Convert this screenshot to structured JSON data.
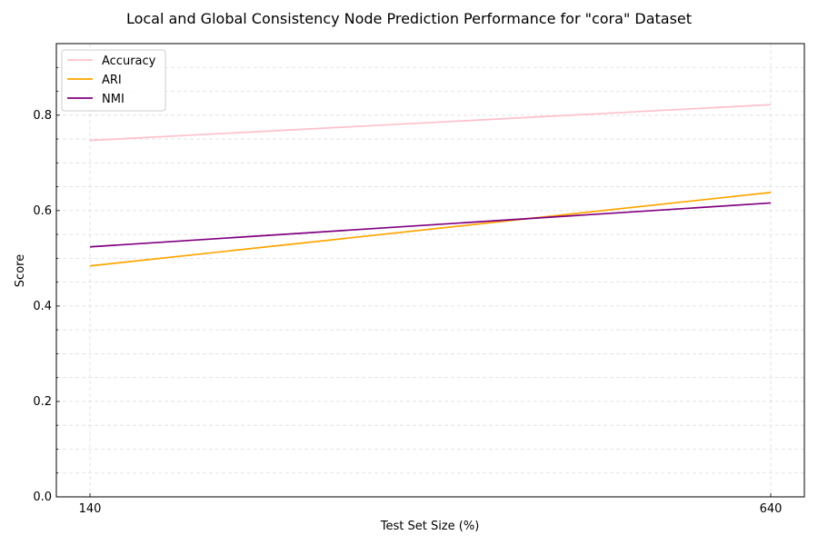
{
  "chart_data": {
    "type": "line",
    "title": "Local and Global Consistency Node Prediction Performance for \"cora\" Dataset",
    "xlabel": "Test Set Size (%)",
    "ylabel": "Score",
    "x": [
      140,
      640
    ],
    "xticks": [
      "140",
      "640"
    ],
    "yticks": [
      "0.0",
      "0.2",
      "0.4",
      "0.6",
      "0.8"
    ],
    "ylim": [
      0,
      0.95
    ],
    "grid": true,
    "legend_position": "top-left",
    "series": [
      {
        "name": "Accuracy",
        "color": "#ffc0cb",
        "values": [
          0.747,
          0.822
        ]
      },
      {
        "name": "ARI",
        "color": "#ffa500",
        "values": [
          0.484,
          0.638
        ]
      },
      {
        "name": "NMI",
        "color": "#800080",
        "values": [
          0.524,
          0.616
        ]
      }
    ]
  }
}
